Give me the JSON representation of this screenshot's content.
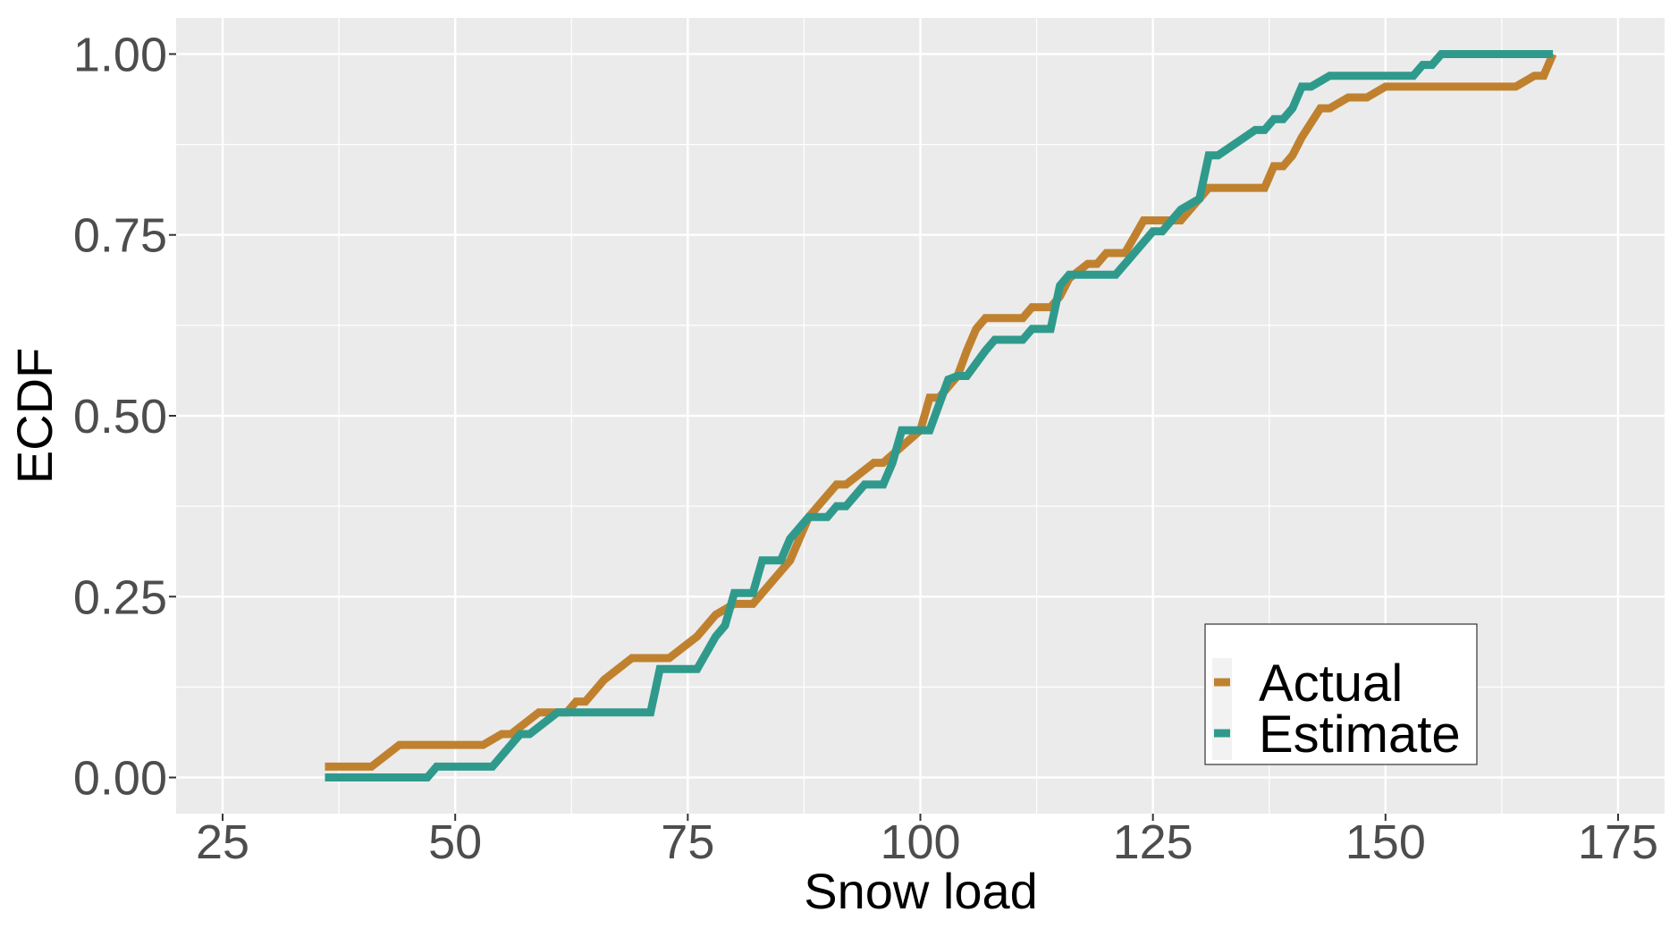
{
  "chart_data": {
    "type": "line",
    "step": true,
    "xlabel": "Snow load",
    "ylabel": "ECDF",
    "xlim": [
      20,
      180
    ],
    "ylim": [
      -0.05,
      1.05
    ],
    "x_ticks": [
      25,
      50,
      75,
      100,
      125,
      150,
      175
    ],
    "x_tick_labels": [
      "25",
      "50",
      "75",
      "100",
      "125",
      "150",
      "175"
    ],
    "y_ticks": [
      0,
      0.25,
      0.5,
      0.75,
      1.0
    ],
    "y_tick_labels": [
      "0.00",
      "0.25",
      "0.50",
      "0.75",
      "1.00"
    ],
    "grid": true,
    "legend_position": "bottom-right",
    "colors": {
      "panel_background": "#ebebeb",
      "grid": "#ffffff",
      "tick_text": "#4d4d4d",
      "axis_title": "#000000"
    },
    "series": [
      {
        "name": "Actual",
        "color": "#c0812f",
        "points": [
          [
            36,
            0.015
          ],
          [
            41,
            0.015
          ],
          [
            44,
            0.045
          ],
          [
            53,
            0.045
          ],
          [
            55,
            0.06
          ],
          [
            56,
            0.06
          ],
          [
            59,
            0.09
          ],
          [
            62,
            0.09
          ],
          [
            63,
            0.105
          ],
          [
            64,
            0.105
          ],
          [
            66,
            0.135
          ],
          [
            69,
            0.165
          ],
          [
            73,
            0.165
          ],
          [
            76,
            0.195
          ],
          [
            78,
            0.225
          ],
          [
            80,
            0.24
          ],
          [
            82,
            0.24
          ],
          [
            84,
            0.27
          ],
          [
            86,
            0.3
          ],
          [
            87,
            0.33
          ],
          [
            88,
            0.36
          ],
          [
            89,
            0.375
          ],
          [
            91,
            0.405
          ],
          [
            92,
            0.405
          ],
          [
            95,
            0.435
          ],
          [
            96,
            0.435
          ],
          [
            100,
            0.48
          ],
          [
            101,
            0.525
          ],
          [
            102,
            0.525
          ],
          [
            104,
            0.555
          ],
          [
            105,
            0.59
          ],
          [
            106,
            0.62
          ],
          [
            107,
            0.635
          ],
          [
            111,
            0.635
          ],
          [
            112,
            0.65
          ],
          [
            114,
            0.65
          ],
          [
            115,
            0.665
          ],
          [
            116,
            0.69
          ],
          [
            118,
            0.71
          ],
          [
            119,
            0.71
          ],
          [
            120,
            0.725
          ],
          [
            122,
            0.725
          ],
          [
            124,
            0.77
          ],
          [
            128,
            0.77
          ],
          [
            131,
            0.815
          ],
          [
            137,
            0.815
          ],
          [
            138,
            0.845
          ],
          [
            139,
            0.845
          ],
          [
            140,
            0.86
          ],
          [
            141,
            0.885
          ],
          [
            142,
            0.905
          ],
          [
            143,
            0.925
          ],
          [
            144,
            0.925
          ],
          [
            146,
            0.94
          ],
          [
            148,
            0.94
          ],
          [
            150,
            0.955
          ],
          [
            164,
            0.955
          ],
          [
            166,
            0.97
          ],
          [
            167,
            0.97
          ],
          [
            168,
            1.0
          ]
        ]
      },
      {
        "name": "Estimate",
        "color": "#2f9a8c",
        "points": [
          [
            36,
            0.0
          ],
          [
            47,
            0.0
          ],
          [
            48,
            0.015
          ],
          [
            54,
            0.015
          ],
          [
            56,
            0.045
          ],
          [
            57,
            0.06
          ],
          [
            58,
            0.06
          ],
          [
            61,
            0.09
          ],
          [
            71,
            0.09
          ],
          [
            72,
            0.15
          ],
          [
            76,
            0.15
          ],
          [
            78,
            0.195
          ],
          [
            79,
            0.21
          ],
          [
            80,
            0.255
          ],
          [
            82,
            0.255
          ],
          [
            83,
            0.3
          ],
          [
            85,
            0.3
          ],
          [
            86,
            0.33
          ],
          [
            88,
            0.36
          ],
          [
            90,
            0.36
          ],
          [
            91,
            0.375
          ],
          [
            92,
            0.375
          ],
          [
            94,
            0.405
          ],
          [
            96,
            0.405
          ],
          [
            97,
            0.435
          ],
          [
            98,
            0.48
          ],
          [
            101,
            0.48
          ],
          [
            103,
            0.55
          ],
          [
            104,
            0.555
          ],
          [
            105,
            0.555
          ],
          [
            107,
            0.59
          ],
          [
            108,
            0.605
          ],
          [
            111,
            0.605
          ],
          [
            112,
            0.62
          ],
          [
            114,
            0.62
          ],
          [
            115,
            0.68
          ],
          [
            116,
            0.695
          ],
          [
            121,
            0.695
          ],
          [
            123,
            0.725
          ],
          [
            125,
            0.755
          ],
          [
            126,
            0.755
          ],
          [
            128,
            0.785
          ],
          [
            130,
            0.8
          ],
          [
            131,
            0.86
          ],
          [
            132,
            0.86
          ],
          [
            136,
            0.895
          ],
          [
            137,
            0.895
          ],
          [
            138,
            0.91
          ],
          [
            139,
            0.91
          ],
          [
            140,
            0.925
          ],
          [
            141,
            0.955
          ],
          [
            142,
            0.955
          ],
          [
            144,
            0.97
          ],
          [
            153,
            0.97
          ],
          [
            154,
            0.985
          ],
          [
            155,
            0.985
          ],
          [
            156,
            1.0
          ],
          [
            168,
            1.0
          ]
        ]
      }
    ]
  }
}
